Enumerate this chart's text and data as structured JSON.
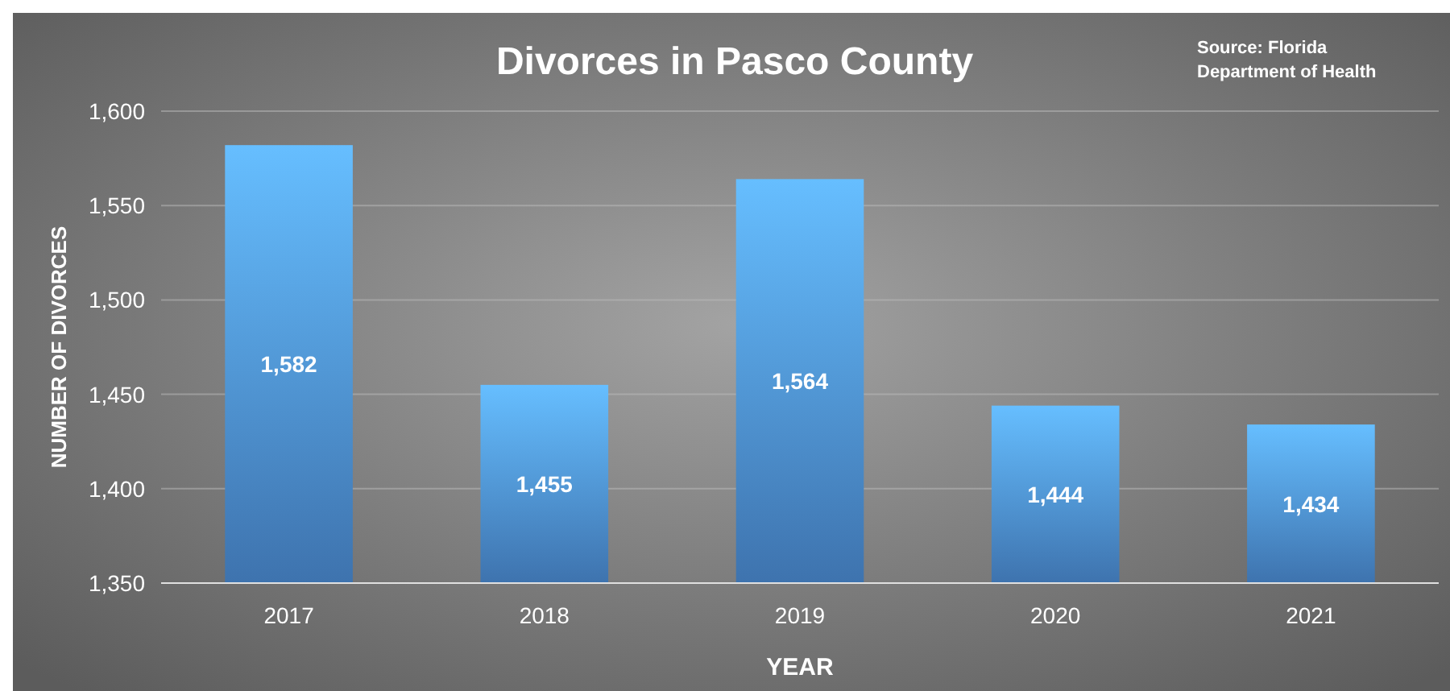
{
  "chart_data": {
    "type": "bar",
    "title": "Divorces in Pasco County",
    "xlabel": "YEAR",
    "ylabel": "NUMBER OF DIVORCES",
    "annotations": [
      "Source: Florida Department of Health"
    ],
    "categories": [
      "2017",
      "2018",
      "2019",
      "2020",
      "2021"
    ],
    "values": [
      1582,
      1455,
      1564,
      1444,
      1434
    ],
    "value_labels": [
      "1,582",
      "1,455",
      "1,564",
      "1,444",
      "1,434"
    ],
    "color": "#4a8ad0",
    "ylim": [
      1350,
      1600
    ],
    "yticks": [
      {
        "value": 1350,
        "label": "1,350"
      },
      {
        "value": 1400,
        "label": "1,400"
      },
      {
        "value": 1450,
        "label": "1,450"
      },
      {
        "value": 1500,
        "label": "1,500"
      },
      {
        "value": 1550,
        "label": "1,550"
      },
      {
        "value": 1600,
        "label": "1,600"
      }
    ],
    "grid": "y"
  }
}
